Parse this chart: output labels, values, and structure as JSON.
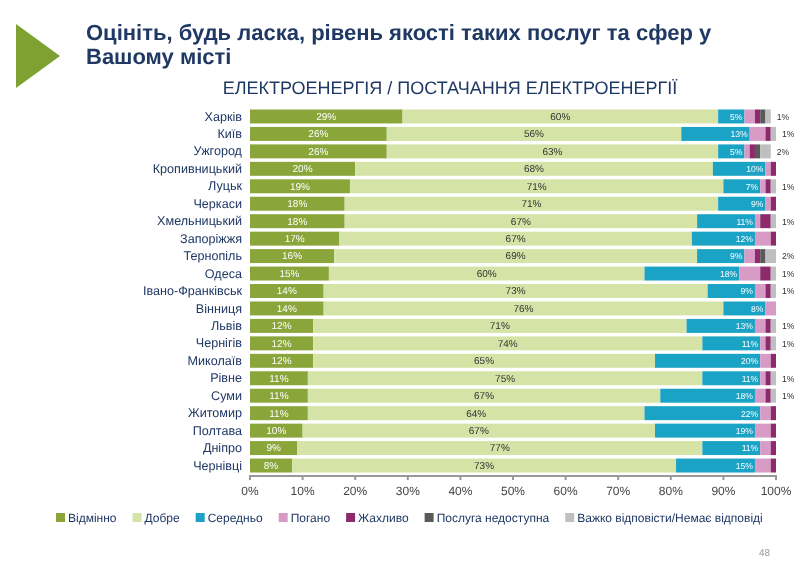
{
  "chart_data": {
    "type": "bar",
    "orientation": "horizontal",
    "stacked": true,
    "title": "Оцініть, будь ласка, рівень якості таких послуг та сфер у Вашому місті",
    "subtitle": "ЕЛЕКТРОЕНЕРГІЯ / ПОСТАЧАННЯ ЕЛЕКТРОЕНЕРГІЇ",
    "categories": [
      "Харків",
      "Київ",
      "Ужгород",
      "Кропивницький",
      "Луцьк",
      "Черкаси",
      "Хмельницький",
      "Запоріжжя",
      "Тернопіль",
      "Одеса",
      "Івано-Франківськ",
      "Вінниця",
      "Львів",
      "Чернігів",
      "Миколаїв",
      "Рівне",
      "Суми",
      "Житомир",
      "Полтава",
      "Дніпро",
      "Чернівці"
    ],
    "xlim": [
      0,
      100
    ],
    "xticks": [
      {
        "value": 0,
        "label": "0%"
      },
      {
        "value": 10,
        "label": "10%"
      },
      {
        "value": 20,
        "label": "20%"
      },
      {
        "value": 30,
        "label": "30%"
      },
      {
        "value": 40,
        "label": "40%"
      },
      {
        "value": 50,
        "label": "50%"
      },
      {
        "value": 60,
        "label": "60%"
      },
      {
        "value": 70,
        "label": "70%"
      },
      {
        "value": 80,
        "label": "80%"
      },
      {
        "value": 90,
        "label": "90%"
      },
      {
        "value": 100,
        "label": "100%"
      }
    ],
    "legend": "bottom",
    "series": [
      {
        "name": "Відмінно",
        "color": "#8aa53a",
        "values": [
          29,
          26,
          26,
          20,
          19,
          18,
          18,
          17,
          16,
          15,
          14,
          14,
          12,
          12,
          12,
          11,
          11,
          11,
          10,
          9,
          8
        ],
        "value_labels": [
          "29%",
          "26%",
          "26%",
          "20%",
          "19%",
          "18%",
          "18%",
          "17%",
          "16%",
          "15%",
          "14%",
          "14%",
          "12%",
          "12%",
          "12%",
          "11%",
          "11%",
          "11%",
          "10%",
          "9%",
          "8%"
        ]
      },
      {
        "name": "Добре",
        "color": "#d5e4a6",
        "values": [
          60,
          56,
          63,
          68,
          71,
          71,
          67,
          67,
          69,
          60,
          73,
          76,
          71,
          74,
          65,
          75,
          67,
          64,
          67,
          77,
          73
        ],
        "value_labels": [
          "60%",
          "56%",
          "63%",
          "68%",
          "71%",
          "71%",
          "67%",
          "67%",
          "69%",
          "60%",
          "73%",
          "76%",
          "71%",
          "74%",
          "65%",
          "75%",
          "67%",
          "64%",
          "67%",
          "77%",
          "73%"
        ]
      },
      {
        "name": "Середньо",
        "color": "#1ba3c6",
        "values": [
          5,
          13,
          5,
          10,
          7,
          9,
          11,
          12,
          9,
          18,
          9,
          8,
          13,
          11,
          20,
          11,
          18,
          22,
          19,
          11,
          15
        ],
        "value_labels": [
          "5%",
          "13%",
          "5%",
          "10%",
          "7%",
          "9%",
          "11%",
          "12%",
          "9%",
          "18%",
          "9%",
          "8%",
          "13%",
          "11%",
          "20%",
          "11%",
          "18%",
          "22%",
          "19%",
          "11%",
          "15%"
        ]
      },
      {
        "name": "Погано",
        "color": "#d79bc6",
        "values": [
          2,
          3,
          1,
          1,
          1,
          1,
          1,
          3,
          2,
          4,
          2,
          2,
          2,
          1,
          2,
          1,
          2,
          2,
          3,
          2,
          3
        ]
      },
      {
        "name": "Жахливо",
        "color": "#8c2a6b",
        "values": [
          1,
          1,
          1,
          1,
          1,
          1,
          2,
          1,
          1,
          2,
          1,
          0,
          1,
          1,
          1,
          1,
          1,
          1,
          1,
          1,
          1
        ]
      },
      {
        "name": "Послуга недоступна",
        "color": "#5a5a5a",
        "values": [
          1,
          0,
          1,
          0,
          0,
          0,
          0,
          0,
          1,
          0,
          0,
          0,
          0,
          0,
          0,
          0,
          0,
          0,
          0,
          0,
          0
        ]
      },
      {
        "name": "Важко відповісти/Немає відповіді",
        "color": "#bfbfbf",
        "values": [
          1,
          1,
          2,
          0,
          1,
          0,
          1,
          0,
          2,
          1,
          1,
          0,
          1,
          1,
          0,
          1,
          1,
          0,
          0,
          0,
          0
        ],
        "value_labels": [
          "1%",
          "1%",
          "2%",
          null,
          "1%",
          null,
          "1%",
          null,
          "2%",
          "1%",
          "1%",
          null,
          "1%",
          "1%",
          null,
          "1%",
          "1%",
          null,
          null,
          null,
          null
        ]
      }
    ],
    "annotations": [
      "48"
    ]
  }
}
